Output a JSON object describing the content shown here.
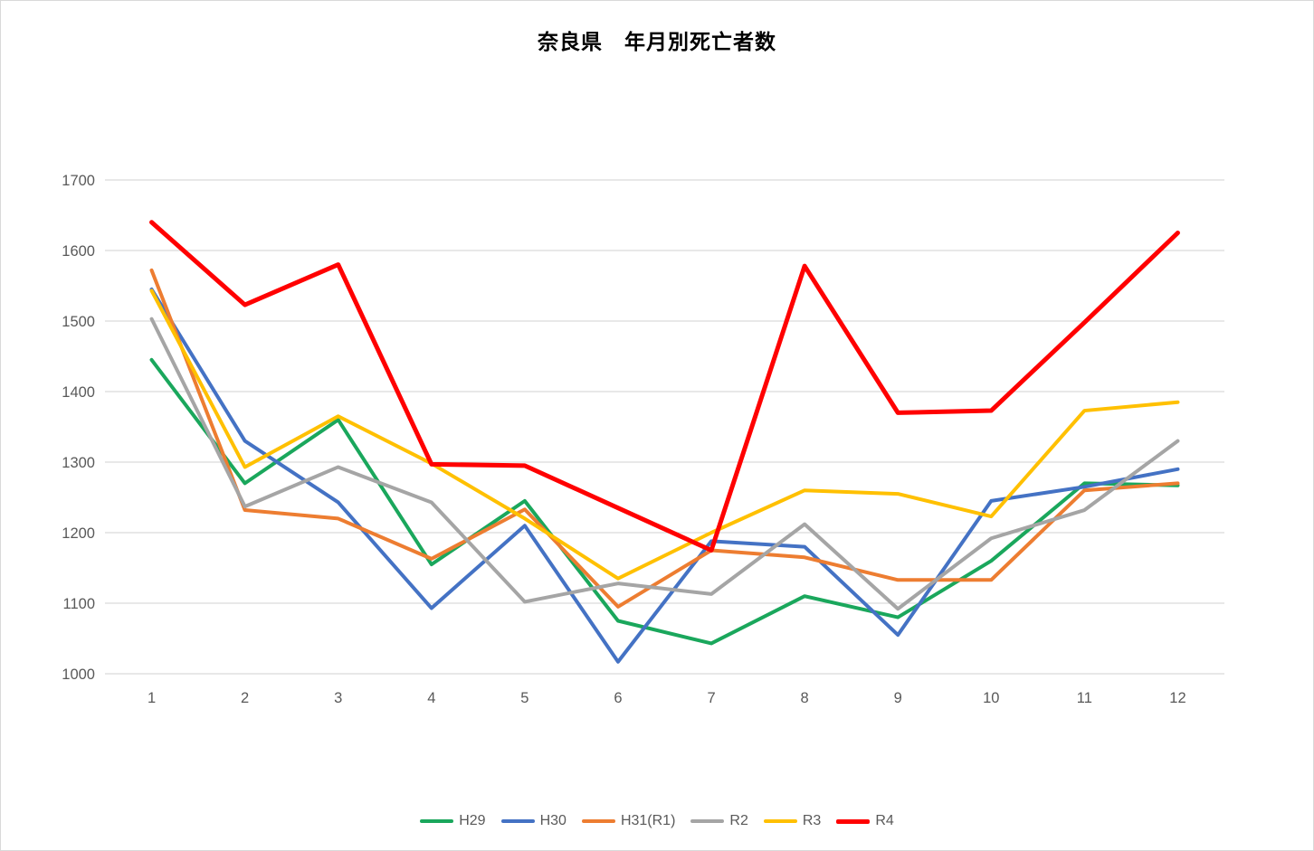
{
  "title": "奈良県　年月別死亡者数",
  "chart_data": {
    "type": "line",
    "title": "奈良県　年月別死亡者数",
    "xlabel": "",
    "ylabel": "",
    "x": [
      1,
      2,
      3,
      4,
      5,
      6,
      7,
      8,
      9,
      10,
      11,
      12
    ],
    "xtick_labels": [
      "1",
      "2",
      "3",
      "4",
      "5",
      "6",
      "7",
      "8",
      "9",
      "10",
      "11",
      "12"
    ],
    "ylim": [
      1000,
      1700
    ],
    "yticks": [
      1000,
      1100,
      1200,
      1300,
      1400,
      1500,
      1600,
      1700
    ],
    "grid": true,
    "legend_position": "bottom",
    "series": [
      {
        "name": "H29",
        "color": "#1AA75C",
        "width": 4,
        "values": [
          1445,
          1270,
          1360,
          1155,
          1245,
          1075,
          1043,
          1110,
          1080,
          1160,
          1270,
          1267
        ]
      },
      {
        "name": "H30",
        "color": "#4472C4",
        "width": 4,
        "values": [
          1545,
          1330,
          1243,
          1093,
          1210,
          1017,
          1188,
          1180,
          1055,
          1245,
          1265,
          1290
        ]
      },
      {
        "name": "H31(R1)",
        "color": "#ED7D31",
        "width": 4,
        "values": [
          1572,
          1232,
          1220,
          1163,
          1233,
          1095,
          1175,
          1165,
          1133,
          1133,
          1260,
          1270
        ]
      },
      {
        "name": "R2",
        "color": "#A5A5A5",
        "width": 4,
        "values": [
          1503,
          1237,
          1293,
          1243,
          1102,
          1128,
          1113,
          1212,
          1092,
          1192,
          1232,
          1330
        ]
      },
      {
        "name": "R3",
        "color": "#FFC000",
        "width": 4,
        "values": [
          1543,
          1293,
          1365,
          1298,
          1220,
          1135,
          1200,
          1260,
          1255,
          1223,
          1373,
          1385
        ]
      },
      {
        "name": "R4",
        "color": "#FF0000",
        "width": 5,
        "values": [
          1640,
          1523,
          1580,
          1297,
          1295,
          1235,
          1175,
          1578,
          1370,
          1373,
          1498,
          1625
        ]
      }
    ],
    "colors": {
      "gridline": "#D9D9D9",
      "tick_label": "#595959",
      "title": "#000000"
    }
  }
}
